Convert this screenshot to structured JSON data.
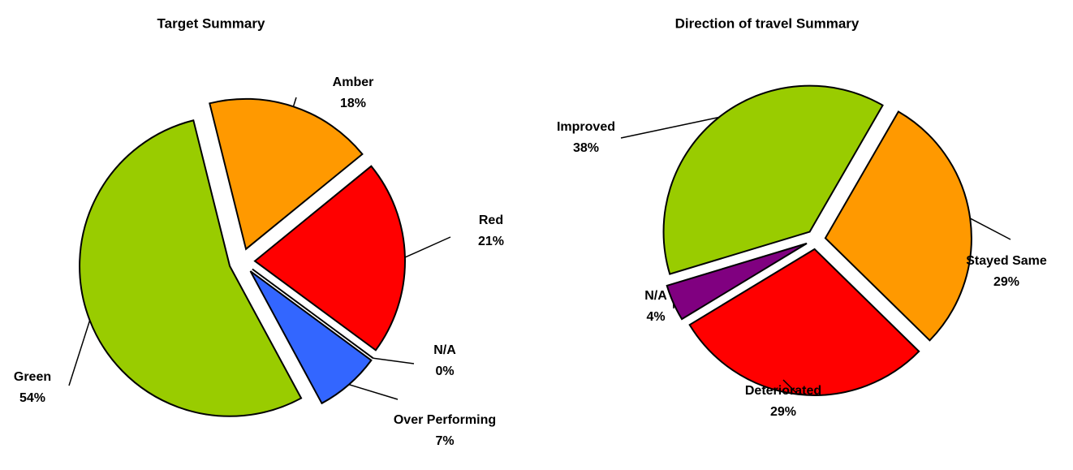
{
  "chart_data": [
    {
      "type": "pie",
      "title": "Target Summary",
      "categories": [
        "Amber",
        "Red",
        "N/A",
        "Over Performing",
        "Green"
      ],
      "values": [
        18,
        21,
        0,
        7,
        54
      ],
      "value_labels": [
        "18%",
        "21%",
        "0%",
        "7%",
        "54%"
      ],
      "colors": [
        "#ff9900",
        "#ff0000",
        "#3366ff",
        "#3366ff",
        "#99cc00"
      ]
    },
    {
      "type": "pie",
      "title": "Direction of travel Summary",
      "categories": [
        "Stayed Same",
        "Deteriorated",
        "N/A",
        "Improved"
      ],
      "values": [
        29,
        29,
        4,
        38
      ],
      "value_labels": [
        "29%",
        "29%",
        "4%",
        "38%"
      ],
      "colors": [
        "#ff9900",
        "#ff0000",
        "#800080",
        "#99cc00"
      ]
    }
  ]
}
